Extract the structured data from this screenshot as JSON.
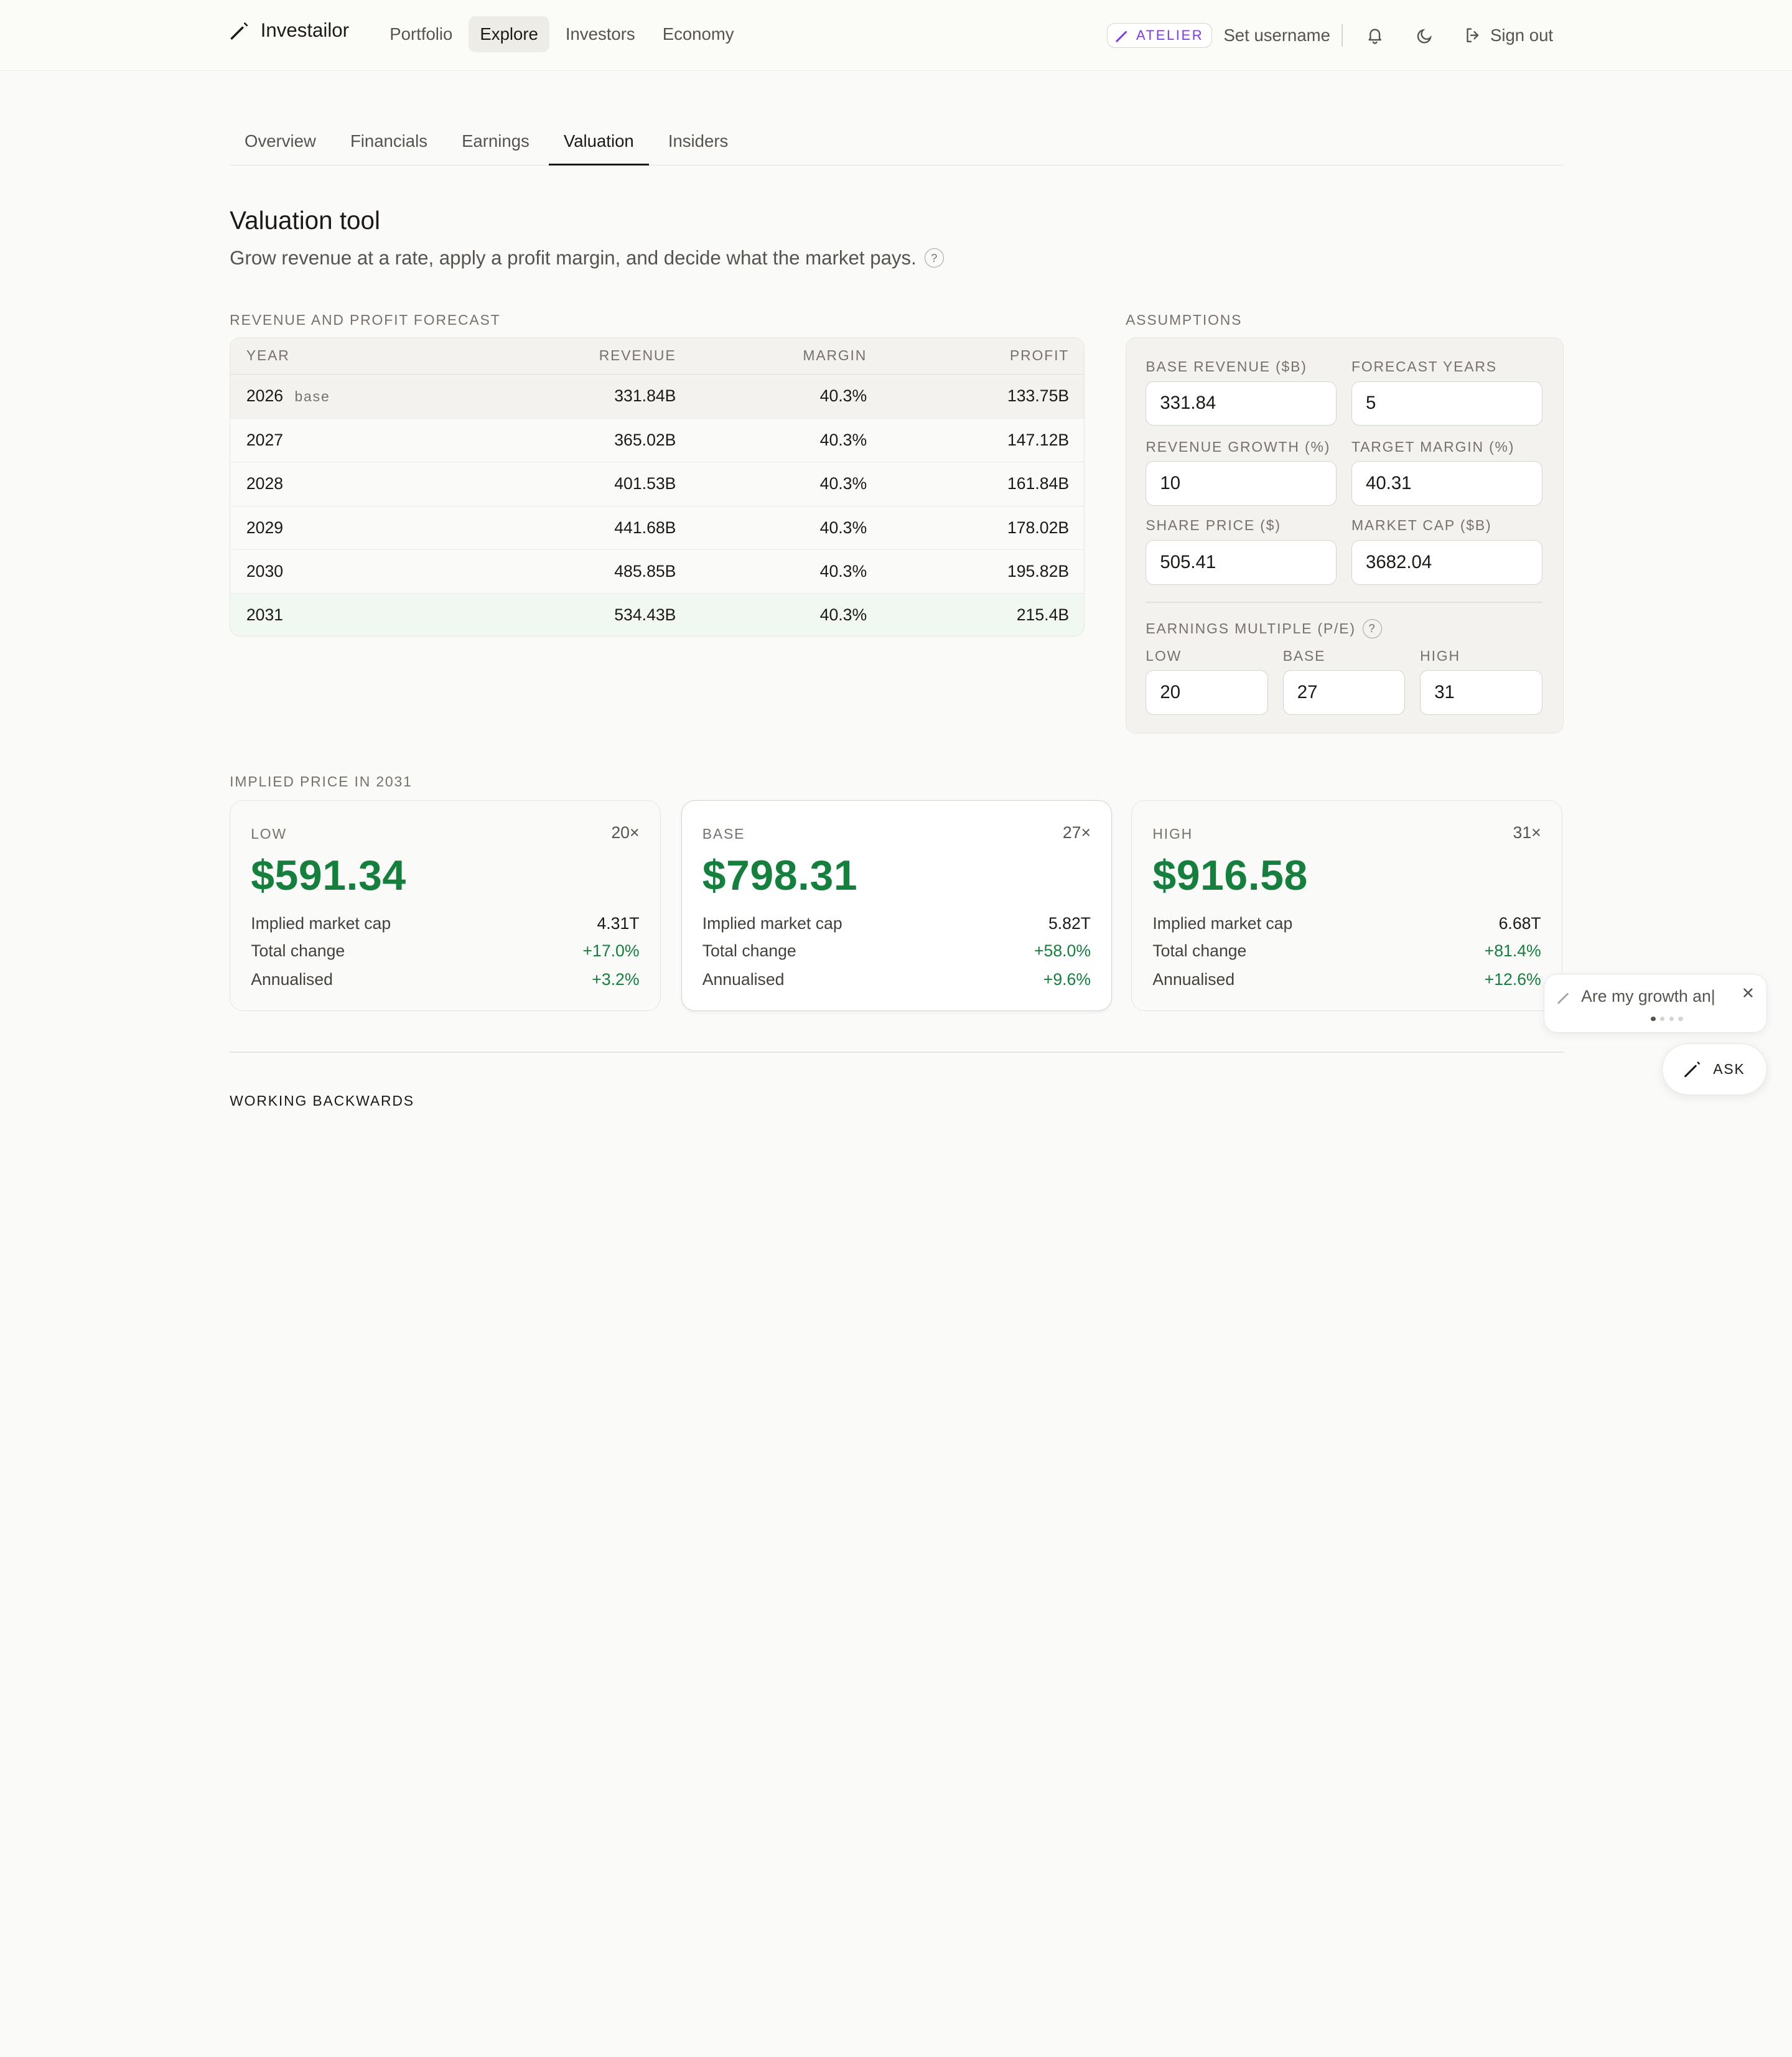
{
  "app": {
    "name": "Investailor"
  },
  "nav": [
    "Portfolio",
    "Explore",
    "Investors",
    "Economy"
  ],
  "header": {
    "badge": "ATELIER",
    "username": "Set username",
    "signout": "Sign out"
  },
  "tabs": [
    "Overview",
    "Financials",
    "Earnings",
    "Valuation",
    "Insiders"
  ],
  "page": {
    "title": "Valuation tool",
    "subtitle": "Grow revenue at a rate, apply a profit margin, and decide what the market pays.",
    "help": "?"
  },
  "forecast": {
    "label": "REVENUE AND PROFIT FORECAST",
    "headers": [
      "YEAR",
      "REVENUE",
      "MARGIN",
      "PROFIT"
    ],
    "base_tag": "base",
    "rows": [
      {
        "year": "2026",
        "revenue": "331.84B",
        "margin": "40.3%",
        "profit": "133.75B"
      },
      {
        "year": "2027",
        "revenue": "365.02B",
        "margin": "40.3%",
        "profit": "147.12B"
      },
      {
        "year": "2028",
        "revenue": "401.53B",
        "margin": "40.3%",
        "profit": "161.84B"
      },
      {
        "year": "2029",
        "revenue": "441.68B",
        "margin": "40.3%",
        "profit": "178.02B"
      },
      {
        "year": "2030",
        "revenue": "485.85B",
        "margin": "40.3%",
        "profit": "195.82B"
      },
      {
        "year": "2031",
        "revenue": "534.43B",
        "margin": "40.3%",
        "profit": "215.4B"
      }
    ]
  },
  "assumptions": {
    "label": "ASSUMPTIONS",
    "base_revenue": {
      "label": "BASE REVENUE ($B)",
      "value": "331.84"
    },
    "forecast_years": {
      "label": "FORECAST YEARS",
      "value": "5"
    },
    "revenue_growth": {
      "label": "REVENUE GROWTH (%)",
      "value": "10"
    },
    "target_margin": {
      "label": "TARGET MARGIN (%)",
      "value": "40.31"
    },
    "share_price": {
      "label": "SHARE PRICE ($)",
      "value": "505.41"
    },
    "market_cap": {
      "label": "MARKET CAP ($B)",
      "value": "3682.04"
    },
    "pe": {
      "label": "EARNINGS MULTIPLE (P/E)",
      "low": {
        "label": "LOW",
        "value": "20"
      },
      "base": {
        "label": "BASE",
        "value": "27"
      },
      "high": {
        "label": "HIGH",
        "value": "31"
      }
    }
  },
  "implied": {
    "label": "IMPLIED PRICE IN 2031",
    "row_labels": {
      "market_cap": "Implied market cap",
      "total_change": "Total change",
      "annualised": "Annualised"
    },
    "cards": [
      {
        "label": "LOW",
        "multiple": "20×",
        "price": "$591.34",
        "market_cap": "4.31T",
        "total_change": "+17.0%",
        "annualised": "+3.2%"
      },
      {
        "label": "BASE",
        "multiple": "27×",
        "price": "$798.31",
        "market_cap": "5.82T",
        "total_change": "+58.0%",
        "annualised": "+9.6%"
      },
      {
        "label": "HIGH",
        "multiple": "31×",
        "price": "$916.58",
        "market_cap": "6.68T",
        "total_change": "+81.4%",
        "annualised": "+12.6%"
      }
    ]
  },
  "working_backwards": {
    "label": "WORKING BACKWARDS"
  },
  "assistant": {
    "prompt": "Are my growth an|",
    "ask": "ASK",
    "close": "✕"
  },
  "colors": {
    "positive": "#15803d",
    "accent": "#7c3aed"
  }
}
